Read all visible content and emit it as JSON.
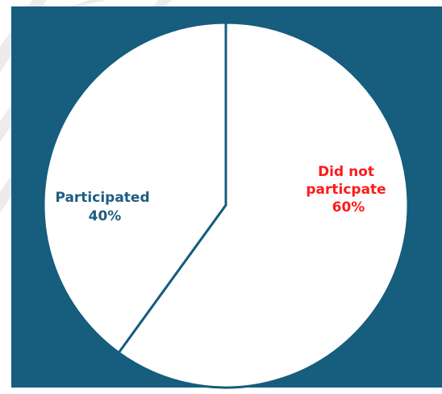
{
  "colors": {
    "frame": "#165d7e",
    "slice_fill": "#ffffff",
    "slice_edge": "#165d7e",
    "participated_text": "#1e5d80",
    "did_not_text": "#ff1a1a",
    "page_background": "#ffffff",
    "watermark": "#ececec"
  },
  "chart_data": {
    "type": "pie",
    "title": "",
    "slices": [
      {
        "label_lines": [
          "Did not",
          "particpate"
        ],
        "value": 60,
        "value_label": "60%"
      },
      {
        "label_lines": [
          "Participated"
        ],
        "value": 40,
        "value_label": "40%"
      }
    ],
    "start_angle_deg": 0,
    "direction": "clockwise"
  }
}
